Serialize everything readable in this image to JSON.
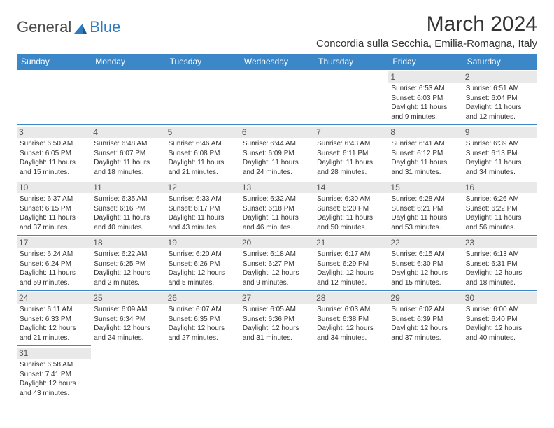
{
  "logo": {
    "part1": "General",
    "part2": "Blue"
  },
  "title": "March 2024",
  "location": "Concordia sulla Secchia, Emilia-Romagna, Italy",
  "colors": {
    "header_bg": "#3b87c8",
    "header_fg": "#ffffff",
    "border": "#3b87c8",
    "daynum_bg": "#e9e9e9",
    "text": "#333333"
  },
  "weekdays": [
    "Sunday",
    "Monday",
    "Tuesday",
    "Wednesday",
    "Thursday",
    "Friday",
    "Saturday"
  ],
  "grid": [
    [
      null,
      null,
      null,
      null,
      null,
      {
        "n": "1",
        "sr": "6:53 AM",
        "ss": "6:03 PM",
        "dl": "11 hours and 9 minutes."
      },
      {
        "n": "2",
        "sr": "6:51 AM",
        "ss": "6:04 PM",
        "dl": "11 hours and 12 minutes."
      }
    ],
    [
      {
        "n": "3",
        "sr": "6:50 AM",
        "ss": "6:05 PM",
        "dl": "11 hours and 15 minutes."
      },
      {
        "n": "4",
        "sr": "6:48 AM",
        "ss": "6:07 PM",
        "dl": "11 hours and 18 minutes."
      },
      {
        "n": "5",
        "sr": "6:46 AM",
        "ss": "6:08 PM",
        "dl": "11 hours and 21 minutes."
      },
      {
        "n": "6",
        "sr": "6:44 AM",
        "ss": "6:09 PM",
        "dl": "11 hours and 24 minutes."
      },
      {
        "n": "7",
        "sr": "6:43 AM",
        "ss": "6:11 PM",
        "dl": "11 hours and 28 minutes."
      },
      {
        "n": "8",
        "sr": "6:41 AM",
        "ss": "6:12 PM",
        "dl": "11 hours and 31 minutes."
      },
      {
        "n": "9",
        "sr": "6:39 AM",
        "ss": "6:13 PM",
        "dl": "11 hours and 34 minutes."
      }
    ],
    [
      {
        "n": "10",
        "sr": "6:37 AM",
        "ss": "6:15 PM",
        "dl": "11 hours and 37 minutes."
      },
      {
        "n": "11",
        "sr": "6:35 AM",
        "ss": "6:16 PM",
        "dl": "11 hours and 40 minutes."
      },
      {
        "n": "12",
        "sr": "6:33 AM",
        "ss": "6:17 PM",
        "dl": "11 hours and 43 minutes."
      },
      {
        "n": "13",
        "sr": "6:32 AM",
        "ss": "6:18 PM",
        "dl": "11 hours and 46 minutes."
      },
      {
        "n": "14",
        "sr": "6:30 AM",
        "ss": "6:20 PM",
        "dl": "11 hours and 50 minutes."
      },
      {
        "n": "15",
        "sr": "6:28 AM",
        "ss": "6:21 PM",
        "dl": "11 hours and 53 minutes."
      },
      {
        "n": "16",
        "sr": "6:26 AM",
        "ss": "6:22 PM",
        "dl": "11 hours and 56 minutes."
      }
    ],
    [
      {
        "n": "17",
        "sr": "6:24 AM",
        "ss": "6:24 PM",
        "dl": "11 hours and 59 minutes."
      },
      {
        "n": "18",
        "sr": "6:22 AM",
        "ss": "6:25 PM",
        "dl": "12 hours and 2 minutes."
      },
      {
        "n": "19",
        "sr": "6:20 AM",
        "ss": "6:26 PM",
        "dl": "12 hours and 5 minutes."
      },
      {
        "n": "20",
        "sr": "6:18 AM",
        "ss": "6:27 PM",
        "dl": "12 hours and 9 minutes."
      },
      {
        "n": "21",
        "sr": "6:17 AM",
        "ss": "6:29 PM",
        "dl": "12 hours and 12 minutes."
      },
      {
        "n": "22",
        "sr": "6:15 AM",
        "ss": "6:30 PM",
        "dl": "12 hours and 15 minutes."
      },
      {
        "n": "23",
        "sr": "6:13 AM",
        "ss": "6:31 PM",
        "dl": "12 hours and 18 minutes."
      }
    ],
    [
      {
        "n": "24",
        "sr": "6:11 AM",
        "ss": "6:33 PM",
        "dl": "12 hours and 21 minutes."
      },
      {
        "n": "25",
        "sr": "6:09 AM",
        "ss": "6:34 PM",
        "dl": "12 hours and 24 minutes."
      },
      {
        "n": "26",
        "sr": "6:07 AM",
        "ss": "6:35 PM",
        "dl": "12 hours and 27 minutes."
      },
      {
        "n": "27",
        "sr": "6:05 AM",
        "ss": "6:36 PM",
        "dl": "12 hours and 31 minutes."
      },
      {
        "n": "28",
        "sr": "6:03 AM",
        "ss": "6:38 PM",
        "dl": "12 hours and 34 minutes."
      },
      {
        "n": "29",
        "sr": "6:02 AM",
        "ss": "6:39 PM",
        "dl": "12 hours and 37 minutes."
      },
      {
        "n": "30",
        "sr": "6:00 AM",
        "ss": "6:40 PM",
        "dl": "12 hours and 40 minutes."
      }
    ],
    [
      {
        "n": "31",
        "sr": "6:58 AM",
        "ss": "7:41 PM",
        "dl": "12 hours and 43 minutes."
      },
      null,
      null,
      null,
      null,
      null,
      null
    ]
  ],
  "labels": {
    "sunrise": "Sunrise:",
    "sunset": "Sunset:",
    "daylight": "Daylight:"
  }
}
